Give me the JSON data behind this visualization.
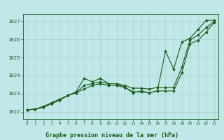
{
  "title": "Graphe pression niveau de la mer (hPa)",
  "background_color": "#c0e8e8",
  "grid_color": "#a8d0d0",
  "line_color": "#1a5c1a",
  "x": [
    0,
    1,
    2,
    3,
    4,
    5,
    6,
    7,
    8,
    9,
    10,
    11,
    12,
    13,
    14,
    15,
    16,
    17,
    18,
    19,
    20,
    21,
    22,
    23
  ],
  "y_line1": [
    1022.1,
    1022.15,
    1022.3,
    1022.5,
    1022.7,
    1022.9,
    1023.1,
    1023.85,
    1023.65,
    1023.85,
    1023.55,
    1023.55,
    1023.35,
    1023.05,
    1023.15,
    1023.05,
    1023.15,
    1025.35,
    1024.35,
    1025.85,
    1026.05,
    1026.55,
    1027.05,
    1027.05
  ],
  "y_line2": [
    1022.1,
    1022.15,
    1022.25,
    1022.45,
    1022.65,
    1022.9,
    1023.05,
    1023.45,
    1023.55,
    1023.65,
    1023.55,
    1023.55,
    1023.45,
    1023.3,
    1023.3,
    1023.25,
    1023.35,
    1023.35,
    1023.35,
    1024.45,
    1025.95,
    1026.25,
    1026.65,
    1027.0
  ],
  "y_line3": [
    1022.1,
    1022.15,
    1022.25,
    1022.45,
    1022.65,
    1022.9,
    1023.05,
    1023.25,
    1023.45,
    1023.55,
    1023.45,
    1023.45,
    1023.35,
    1023.1,
    1023.1,
    1023.05,
    1023.15,
    1023.15,
    1023.15,
    1024.15,
    1025.75,
    1025.95,
    1026.4,
    1026.95
  ],
  "ylim": [
    1021.6,
    1027.4
  ],
  "xlim": [
    -0.5,
    23.5
  ],
  "yticks": [
    1022,
    1023,
    1024,
    1025,
    1026,
    1027
  ],
  "xticks": [
    0,
    1,
    2,
    3,
    4,
    5,
    6,
    7,
    8,
    9,
    10,
    11,
    12,
    13,
    14,
    15,
    16,
    17,
    18,
    19,
    20,
    21,
    22,
    23
  ],
  "figsize": [
    3.2,
    2.0
  ],
  "dpi": 100
}
